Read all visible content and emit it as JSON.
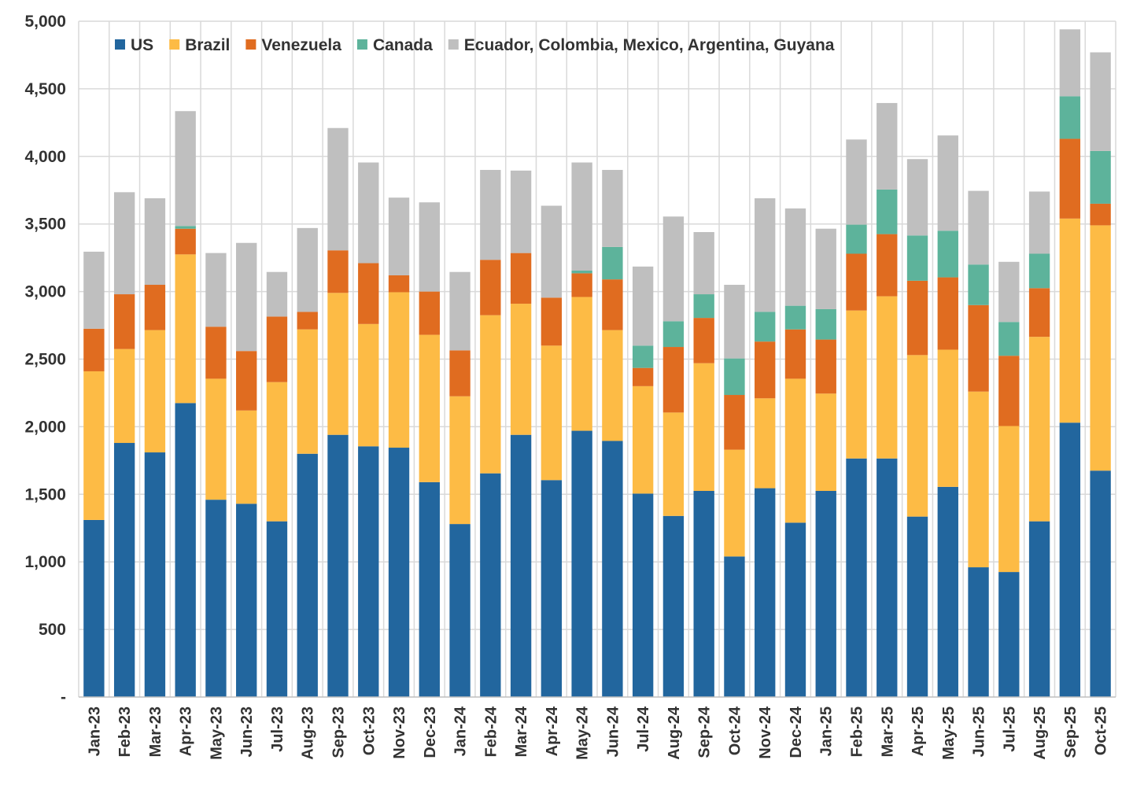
{
  "chart_data": {
    "type": "bar",
    "stacked": true,
    "title": "",
    "xlabel": "",
    "ylabel": "",
    "ylim": [
      0,
      5000
    ],
    "y_ticks": [
      0,
      500,
      1000,
      1500,
      2000,
      2500,
      3000,
      3500,
      4000,
      4500,
      5000
    ],
    "y_tick_labels": [
      "-",
      "500",
      "1,000",
      "1,500",
      "2,000",
      "2,500",
      "3,000",
      "3,500",
      "4,000",
      "4,500",
      "5,000"
    ],
    "grid": true,
    "legend_position": "top",
    "categories": [
      "Jan-23",
      "Feb-23",
      "Mar-23",
      "Apr-23",
      "May-23",
      "Jun-23",
      "Jul-23",
      "Aug-23",
      "Sep-23",
      "Oct-23",
      "Nov-23",
      "Dec-23",
      "Jan-24",
      "Feb-24",
      "Mar-24",
      "Apr-24",
      "May-24",
      "Jun-24",
      "Jul-24",
      "Aug-24",
      "Sep-24",
      "Oct-24",
      "Nov-24",
      "Dec-24",
      "Jan-25",
      "Feb-25",
      "Mar-25",
      "Apr-25",
      "May-25",
      "Jun-25",
      "Jul-25",
      "Aug-25",
      "Sep-25",
      "Oct-25"
    ],
    "series": [
      {
        "name": "US",
        "color": "#22669e",
        "values": [
          1310,
          1880,
          1810,
          2175,
          1460,
          1430,
          1300,
          1800,
          1940,
          1855,
          1845,
          1590,
          1280,
          1655,
          1940,
          1605,
          1970,
          1895,
          1505,
          1340,
          1525,
          1040,
          1545,
          1290,
          1525,
          1765,
          1765,
          1335,
          1555,
          960,
          925,
          1300,
          2030,
          1675
        ]
      },
      {
        "name": "Brazil",
        "color": "#fdbb45",
        "values": [
          1100,
          695,
          905,
          1100,
          895,
          690,
          1030,
          920,
          1050,
          905,
          1150,
          1090,
          945,
          1170,
          970,
          995,
          990,
          820,
          795,
          765,
          945,
          790,
          665,
          1065,
          720,
          1095,
          1200,
          1195,
          1015,
          1300,
          1080,
          1365,
          1510,
          1815
        ]
      },
      {
        "name": "Venezuela",
        "color": "#e06c20",
        "values": [
          315,
          405,
          335,
          190,
          385,
          440,
          485,
          130,
          315,
          450,
          125,
          320,
          340,
          410,
          375,
          355,
          175,
          375,
          135,
          485,
          335,
          405,
          420,
          365,
          400,
          420,
          460,
          550,
          535,
          640,
          520,
          360,
          590,
          160
        ]
      },
      {
        "name": "Canada",
        "color": "#5db39b",
        "values": [
          0,
          0,
          0,
          20,
          0,
          0,
          0,
          0,
          0,
          0,
          0,
          0,
          0,
          0,
          0,
          0,
          20,
          240,
          165,
          190,
          175,
          270,
          220,
          175,
          225,
          215,
          330,
          335,
          345,
          300,
          250,
          255,
          315,
          390
        ]
      },
      {
        "name": "Ecuador, Colombia, Mexico, Argentina, Guyana",
        "color": "#bfbfbf",
        "values": [
          570,
          755,
          640,
          850,
          545,
          800,
          330,
          620,
          905,
          745,
          575,
          660,
          580,
          665,
          610,
          680,
          800,
          570,
          585,
          775,
          460,
          545,
          840,
          720,
          595,
          630,
          640,
          565,
          705,
          545,
          445,
          460,
          495,
          730
        ]
      }
    ]
  }
}
